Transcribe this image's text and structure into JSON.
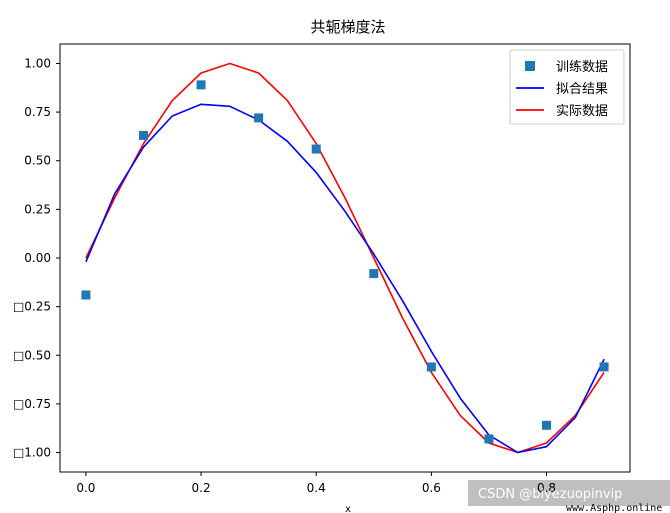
{
  "chart_data": {
    "type": "line",
    "title": "共轭梯度法",
    "xlabel": "x",
    "ylabel": "",
    "xlim": [
      -0.045,
      0.945
    ],
    "ylim": [
      -1.1,
      1.1
    ],
    "x_ticks": [
      0.0,
      0.2,
      0.4,
      0.6,
      0.8
    ],
    "x_tick_labels": [
      "0.0",
      "0.2",
      "0.4",
      "0.6",
      "0.8"
    ],
    "y_ticks": [
      1.0,
      0.75,
      0.5,
      0.25,
      0.0,
      -0.25,
      -0.5,
      -0.75,
      -1.0
    ],
    "y_tick_labels": [
      "1.00",
      "0.75",
      "0.50",
      "0.25",
      "0.00",
      "□0.25",
      "□0.50",
      "□0.75",
      "□1.00"
    ],
    "grid": false,
    "legend_position": "top-right",
    "series": [
      {
        "name": "训练数据",
        "kind": "scatter",
        "marker": "square",
        "color": "#1f77b4",
        "x": [
          0.0,
          0.1,
          0.2,
          0.3,
          0.4,
          0.5,
          0.6,
          0.7,
          0.8,
          0.9
        ],
        "y": [
          -0.19,
          0.63,
          0.89,
          0.72,
          0.56,
          -0.08,
          -0.56,
          -0.93,
          -0.86,
          -0.56
        ]
      },
      {
        "name": "拟合结果",
        "kind": "line",
        "color": "#0000ff",
        "x": [
          0.0,
          0.05,
          0.1,
          0.15,
          0.2,
          0.25,
          0.3,
          0.35,
          0.4,
          0.45,
          0.5,
          0.55,
          0.6,
          0.65,
          0.7,
          0.75,
          0.8,
          0.85,
          0.9
        ],
        "y": [
          -0.02,
          0.33,
          0.57,
          0.73,
          0.79,
          0.78,
          0.71,
          0.6,
          0.44,
          0.24,
          0.02,
          -0.22,
          -0.48,
          -0.72,
          -0.91,
          -1.0,
          -0.97,
          -0.82,
          -0.52
        ]
      },
      {
        "name": "实际数据",
        "kind": "line",
        "color": "#ff0000",
        "x": [
          0.0,
          0.05,
          0.1,
          0.15,
          0.2,
          0.25,
          0.3,
          0.35,
          0.4,
          0.45,
          0.5,
          0.55,
          0.6,
          0.65,
          0.7,
          0.75,
          0.8,
          0.85,
          0.9
        ],
        "y": [
          0.0,
          0.309,
          0.588,
          0.809,
          0.951,
          1.0,
          0.951,
          0.809,
          0.588,
          0.309,
          0.0,
          -0.309,
          -0.588,
          -0.809,
          -0.951,
          -1.0,
          -0.951,
          -0.809,
          -0.588
        ]
      }
    ]
  },
  "watermark": {
    "text": "CSDN @biyezuopinvip",
    "site": "www.Asphp.online"
  }
}
